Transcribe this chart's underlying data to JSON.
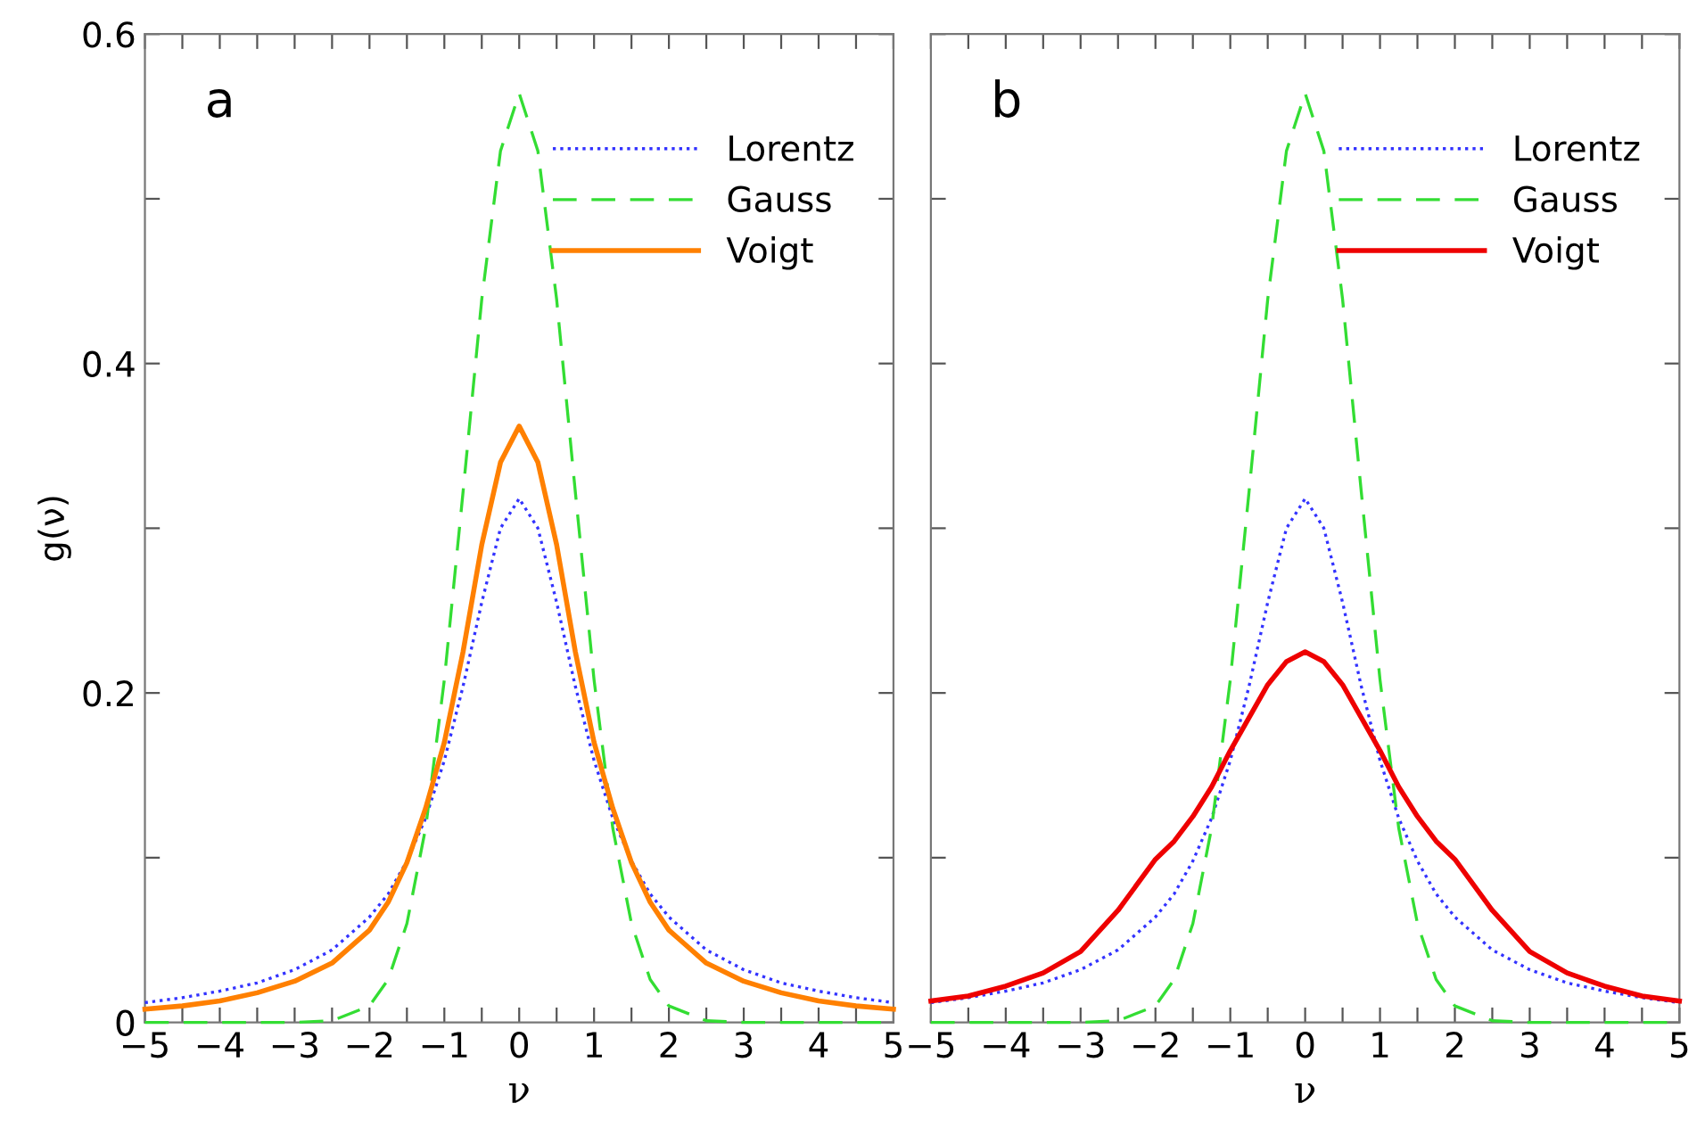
{
  "chart_data": [
    {
      "type": "line",
      "ylabel": "g(ν)",
      "xlabel": "ν",
      "annotations": [
        "a"
      ],
      "legend": "top right",
      "grid": false,
      "marker": "none",
      "x": [
        -5,
        -4.5,
        -4,
        -3.5,
        -3,
        -2.5,
        -2,
        -1.75,
        -1.5,
        -1.25,
        -1,
        -0.75,
        -0.5,
        -0.25,
        0,
        0.25,
        0.5,
        0.75,
        1,
        1.25,
        1.5,
        1.75,
        2,
        2.5,
        3,
        3.5,
        4,
        4.5,
        5
      ],
      "xlim": [
        -5,
        5
      ],
      "ylim": [
        0,
        0.6
      ],
      "xticks": [
        {
          "value": -5,
          "label": "−5"
        },
        {
          "value": -4.5,
          "label": null
        },
        {
          "value": -4,
          "label": "−4"
        },
        {
          "value": -3.5,
          "label": null
        },
        {
          "value": -3,
          "label": "−3"
        },
        {
          "value": -2.5,
          "label": null
        },
        {
          "value": -2,
          "label": "−2"
        },
        {
          "value": -1.5,
          "label": null
        },
        {
          "value": -1,
          "label": "−1"
        },
        {
          "value": -0.5,
          "label": null
        },
        0,
        {
          "value": 0.5,
          "label": null
        },
        1,
        {
          "value": 1.5,
          "label": null
        },
        2,
        {
          "value": 2.5,
          "label": null
        },
        3,
        {
          "value": 3.5,
          "label": null
        },
        4,
        {
          "value": 4.5,
          "label": null
        },
        5
      ],
      "yticks": [
        0,
        {
          "value": 0.1,
          "label": null
        },
        0.2,
        {
          "value": 0.3,
          "label": null
        },
        0.4,
        {
          "value": 0.5,
          "label": null
        },
        0.6
      ],
      "series": [
        {
          "name": "Lorentz",
          "color": "#3333ff",
          "line_style": "dotted",
          "values": [
            0.012,
            0.015,
            0.019,
            0.024,
            0.032,
            0.044,
            0.064,
            0.078,
            0.098,
            0.124,
            0.159,
            0.204,
            0.255,
            0.3,
            0.318,
            0.3,
            0.255,
            0.204,
            0.159,
            0.124,
            0.098,
            0.078,
            0.064,
            0.044,
            0.032,
            0.024,
            0.019,
            0.015,
            0.012
          ]
        },
        {
          "name": "Gauss",
          "color": "#33dd33",
          "line_style": "dashed",
          "values": [
            0,
            0,
            0,
            0,
            0,
            0.001,
            0.01,
            0.026,
            0.06,
            0.118,
            0.208,
            0.322,
            0.439,
            0.529,
            0.564,
            0.529,
            0.439,
            0.322,
            0.208,
            0.118,
            0.06,
            0.026,
            0.01,
            0.001,
            0,
            0,
            0,
            0,
            0
          ]
        },
        {
          "name": "Voigt",
          "color": "#ff8000",
          "line_style": "solid",
          "values": [
            0.008,
            0.01,
            0.013,
            0.018,
            0.025,
            0.036,
            0.056,
            0.073,
            0.097,
            0.13,
            0.17,
            0.225,
            0.29,
            0.34,
            0.362,
            0.34,
            0.29,
            0.225,
            0.17,
            0.13,
            0.097,
            0.073,
            0.056,
            0.036,
            0.025,
            0.018,
            0.013,
            0.01,
            0.008
          ]
        }
      ]
    },
    {
      "type": "line",
      "xlabel": "ν",
      "annotations": [
        "b"
      ],
      "legend": "top right",
      "grid": false,
      "marker": "none",
      "tick_labels": "x",
      "x": [
        -5,
        -4.5,
        -4,
        -3.5,
        -3,
        -2.5,
        -2,
        -1.75,
        -1.5,
        -1.25,
        -1,
        -0.75,
        -0.5,
        -0.25,
        0,
        0.25,
        0.5,
        0.75,
        1,
        1.25,
        1.5,
        1.75,
        2,
        2.5,
        3,
        3.5,
        4,
        4.5,
        5
      ],
      "xlim": [
        -5,
        5
      ],
      "ylim": [
        0,
        0.6
      ],
      "xticks": [
        {
          "value": -5,
          "label": "−5"
        },
        {
          "value": -4.5,
          "label": null
        },
        {
          "value": -4,
          "label": "−4"
        },
        {
          "value": -3.5,
          "label": null
        },
        {
          "value": -3,
          "label": "−3"
        },
        {
          "value": -2.5,
          "label": null
        },
        {
          "value": -2,
          "label": "−2"
        },
        {
          "value": -1.5,
          "label": null
        },
        {
          "value": -1,
          "label": "−1"
        },
        {
          "value": -0.5,
          "label": null
        },
        0,
        {
          "value": 0.5,
          "label": null
        },
        1,
        {
          "value": 1.5,
          "label": null
        },
        2,
        {
          "value": 2.5,
          "label": null
        },
        3,
        {
          "value": 3.5,
          "label": null
        },
        4,
        {
          "value": 4.5,
          "label": null
        },
        5
      ],
      "yticks": [
        0,
        {
          "value": 0.1,
          "label": null
        },
        0.2,
        {
          "value": 0.3,
          "label": null
        },
        0.4,
        {
          "value": 0.5,
          "label": null
        },
        0.6
      ],
      "series": [
        {
          "name": "Lorentz",
          "color": "#3333ff",
          "line_style": "dotted",
          "values": [
            0.012,
            0.015,
            0.019,
            0.024,
            0.032,
            0.044,
            0.064,
            0.078,
            0.098,
            0.124,
            0.159,
            0.204,
            0.255,
            0.3,
            0.318,
            0.3,
            0.255,
            0.204,
            0.159,
            0.124,
            0.098,
            0.078,
            0.064,
            0.044,
            0.032,
            0.024,
            0.019,
            0.015,
            0.012
          ]
        },
        {
          "name": "Gauss",
          "color": "#33dd33",
          "line_style": "dashed",
          "values": [
            0,
            0,
            0,
            0,
            0,
            0.001,
            0.01,
            0.026,
            0.06,
            0.118,
            0.208,
            0.322,
            0.439,
            0.529,
            0.564,
            0.529,
            0.439,
            0.322,
            0.208,
            0.118,
            0.06,
            0.026,
            0.01,
            0.001,
            0,
            0,
            0,
            0,
            0
          ]
        },
        {
          "name": "Voigt",
          "color": "#ee0000",
          "line_style": "solid",
          "values": [
            0.013,
            0.016,
            0.022,
            0.03,
            0.043,
            0.068,
            0.099,
            0.11,
            0.125,
            0.143,
            0.165,
            0.185,
            0.205,
            0.219,
            0.225,
            0.219,
            0.205,
            0.185,
            0.165,
            0.143,
            0.125,
            0.11,
            0.099,
            0.068,
            0.043,
            0.03,
            0.022,
            0.016,
            0.013
          ]
        }
      ]
    }
  ]
}
